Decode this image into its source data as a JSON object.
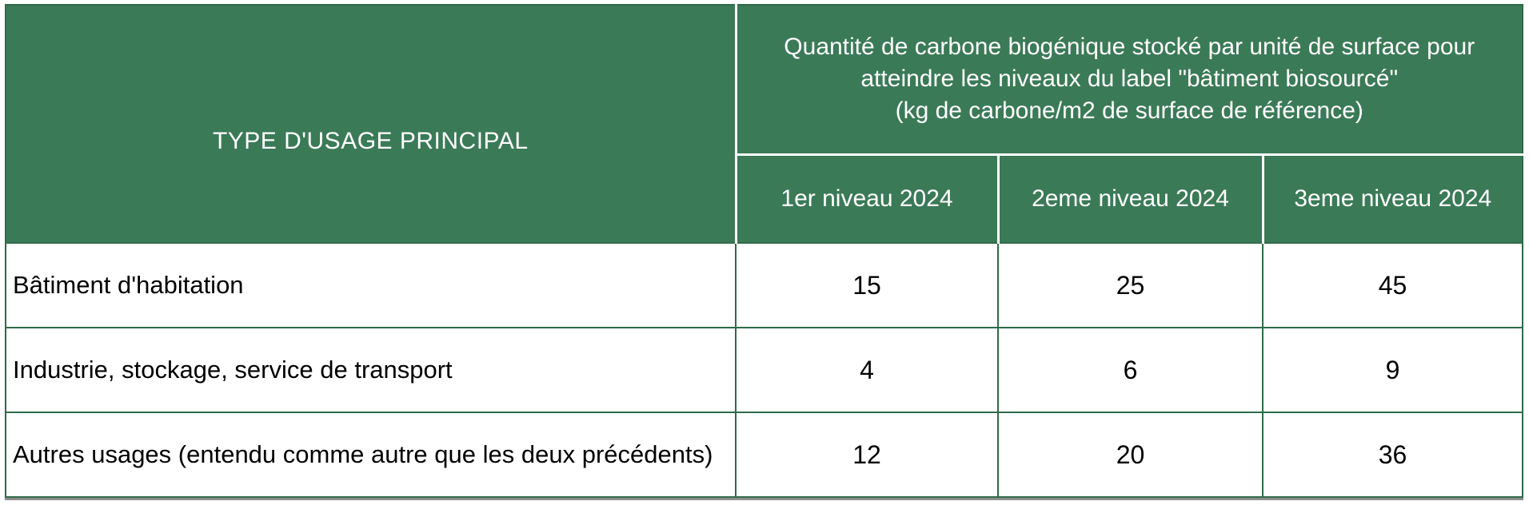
{
  "table": {
    "corner_header": "TYPE D'USAGE PRINCIPAL",
    "group_header": "Quantité de carbone biogénique stocké par unité de surface pour\natteindre les niveaux du label \"bâtiment biosourcé\"\n(kg de carbone/m2 de surface de référence)",
    "level_headers": [
      "1er niveau 2024",
      "2eme niveau 2024",
      "3eme niveau 2024"
    ],
    "rows": [
      {
        "usage": "Bâtiment d'habitation",
        "values": [
          "15",
          "25",
          "45"
        ]
      },
      {
        "usage": "Industrie, stockage, service de transport",
        "values": [
          "4",
          "6",
          "9"
        ]
      },
      {
        "usage": "Autres usages (entendu comme autre que les deux précédents)",
        "values": [
          "12",
          "20",
          "36"
        ]
      }
    ],
    "colors": {
      "header_background": "#3B7A57",
      "header_text": "#FFFFFF",
      "grid_border_green": "#2F6B4A",
      "header_divider_white": "#FFFFFF",
      "body_text": "#000000",
      "bottom_shadow_gray": "#8D8D8D"
    }
  }
}
